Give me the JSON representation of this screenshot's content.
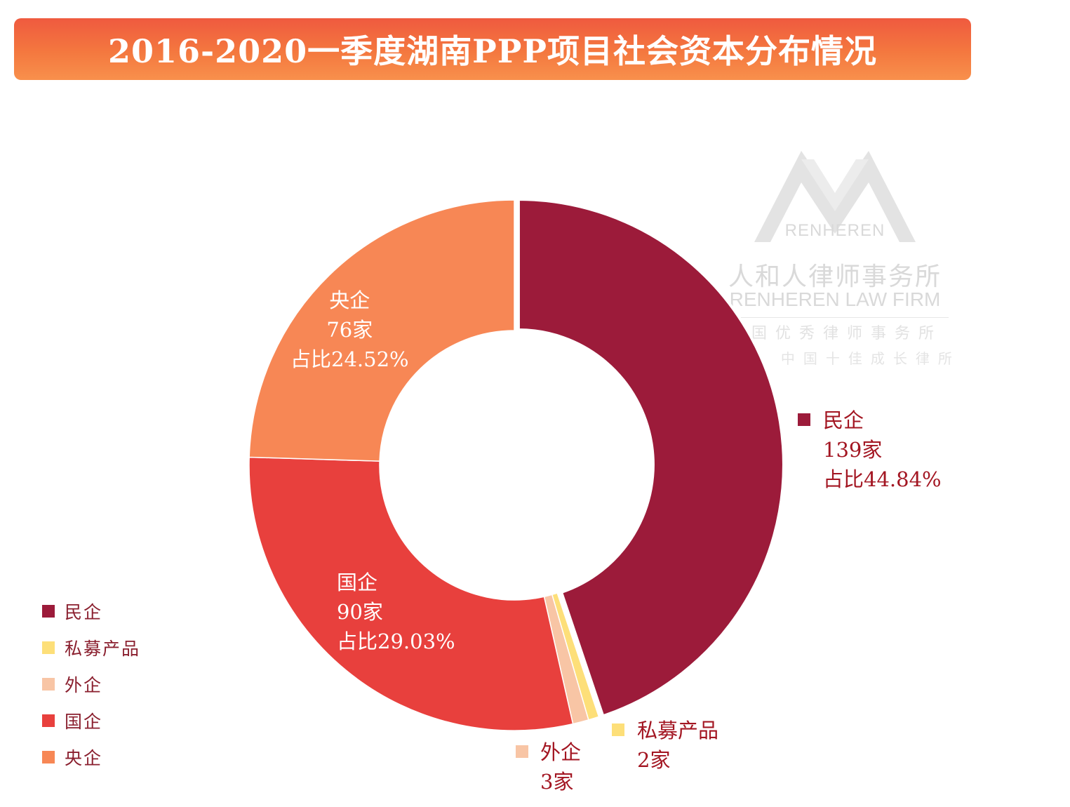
{
  "title": "2016-2020一季度湖南PPP项目社会资本分布情况",
  "watermark": {
    "brand": "RENHEREN",
    "name_cn": "人和人律师事务所",
    "name_en": "RENHEREN LAW FIRM",
    "line3": "全国优秀律师事务所",
    "line4": "ALB 中国十佳成长律所"
  },
  "chart_data": {
    "type": "pie",
    "style": "donut",
    "categories": [
      "民企",
      "私募产品",
      "外企",
      "国企",
      "央企"
    ],
    "values": [
      139,
      2,
      3,
      90,
      76
    ],
    "percentages": [
      "44.84%",
      "0.65%",
      "0.97%",
      "29.03%",
      "24.52%"
    ],
    "colors": [
      "#9c1b3a",
      "#fddf79",
      "#f8c5a5",
      "#e8403d",
      "#f78755"
    ],
    "legend_position": "bottom-left",
    "labels": {
      "minqi": {
        "name": "民企",
        "count": "139家",
        "pct": "占比44.84%"
      },
      "simu": {
        "name": "私募产品",
        "count": "2家"
      },
      "waiqi": {
        "name": "外企",
        "count": "3家"
      },
      "guoqi": {
        "name": "国企",
        "count": "90家",
        "pct": "占比29.03%"
      },
      "yangqi": {
        "name": "央企",
        "count": "76家",
        "pct": "占比24.52%"
      }
    }
  }
}
